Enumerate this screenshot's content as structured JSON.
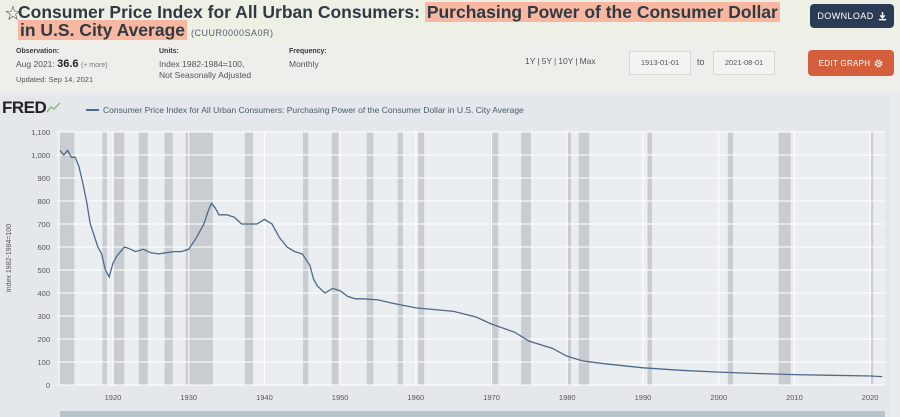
{
  "header": {
    "title_part1": "Consumer Price Index for All Urban Consumers: ",
    "title_part2": "Purchasing Power of the Consumer Dollar",
    "title_part3": "in U.S. City Average",
    "series_id": "(CUUR0000SA0R)",
    "download_label": "DOWNLOAD",
    "icons": {
      "star": "star-icon",
      "download": "download-icon"
    }
  },
  "meta": {
    "observation_label": "Observation:",
    "observation_date": "Aug 2021:",
    "observation_value": "36.6",
    "observation_more": "(+ more)",
    "updated": "Updated: Sep 14, 2021",
    "units_label": "Units:",
    "units_line1": "Index 1982-1984=100,",
    "units_line2": "Not Seasonally Adjusted",
    "frequency_label": "Frequency:",
    "frequency_value": "Monthly",
    "range_links": [
      "1Y",
      "5Y",
      "10Y",
      "Max"
    ],
    "date_from": "1913-01-01",
    "date_to_label": "to",
    "date_to": "2021-08-01",
    "edit_graph_label": "EDIT GRAPH",
    "icons": {
      "edit": "gear-icon"
    }
  },
  "chart": {
    "logo": "FRED",
    "legend_label": "Consumer Price Index for All Urban Consumers: Purchasing Power of the Consumer Dollar in U.S. City Average"
  },
  "colors": {
    "line": "#4d6a8a",
    "recession": "#c9cdd1",
    "grid": "#ffffff",
    "plot_bg": "#ebeef1"
  },
  "chart_data": {
    "type": "line",
    "title": "Consumer Price Index for All Urban Consumers: Purchasing Power of the Consumer Dollar in U.S. City Average",
    "xlabel": "",
    "ylabel": "Index 1982-1984=100",
    "xlim": [
      1913,
      2021.7
    ],
    "ylim": [
      0,
      1100
    ],
    "yticks": [
      0,
      100,
      200,
      300,
      400,
      500,
      600,
      700,
      800,
      900,
      1000,
      1100
    ],
    "ytick_labels": [
      "0",
      "100",
      "200",
      "300",
      "400",
      "500",
      "600",
      "700",
      "800",
      "900",
      "1,000",
      "1,100"
    ],
    "xticks": [
      1920,
      1930,
      1940,
      1950,
      1960,
      1970,
      1980,
      1990,
      2000,
      2010,
      2020
    ],
    "series": [
      {
        "name": "CUUR0000SA0R",
        "x": [
          1913,
          1913.5,
          1914,
          1914.5,
          1915,
          1915.5,
          1916,
          1916.5,
          1917,
          1917.5,
          1918,
          1918.5,
          1919,
          1919.5,
          1920,
          1920.5,
          1921,
          1921.5,
          1922,
          1923,
          1924,
          1925,
          1926,
          1927,
          1928,
          1929,
          1930,
          1931,
          1932,
          1932.5,
          1933,
          1933.5,
          1934,
          1935,
          1936,
          1937,
          1938,
          1939,
          1940,
          1941,
          1942,
          1943,
          1944,
          1945,
          1946,
          1946.5,
          1947,
          1948,
          1949,
          1950,
          1951,
          1952,
          1953,
          1955,
          1957,
          1960,
          1965,
          1968,
          1970,
          1973,
          1975,
          1978,
          1980,
          1982,
          1985,
          1990,
          1995,
          2000,
          2005,
          2010,
          2015,
          2020,
          2021.6
        ],
        "values": [
          1020,
          1000,
          1020,
          990,
          990,
          950,
          880,
          800,
          700,
          650,
          600,
          570,
          500,
          470,
          530,
          560,
          580,
          600,
          595,
          580,
          590,
          575,
          570,
          575,
          580,
          580,
          590,
          640,
          700,
          750,
          790,
          770,
          740,
          740,
          730,
          700,
          700,
          700,
          720,
          700,
          640,
          600,
          580,
          570,
          520,
          460,
          430,
          400,
          420,
          410,
          385,
          375,
          375,
          370,
          355,
          335,
          320,
          295,
          265,
          230,
          190,
          160,
          125,
          105,
          92,
          75,
          64,
          56,
          50,
          45,
          42,
          39,
          36.6
        ]
      }
    ],
    "recessions": [
      [
        1913,
        1914.9
      ],
      [
        1918.6,
        1919.2
      ],
      [
        1920.1,
        1921.5
      ],
      [
        1923.4,
        1924.6
      ],
      [
        1926.8,
        1927.9
      ],
      [
        1929.6,
        1933.2
      ],
      [
        1937.4,
        1938.5
      ],
      [
        1945.1,
        1945.8
      ],
      [
        1948.9,
        1949.8
      ],
      [
        1953.5,
        1954.4
      ],
      [
        1957.6,
        1958.3
      ],
      [
        1960.3,
        1961.1
      ],
      [
        1969.9,
        1970.9
      ],
      [
        1973.9,
        1975.2
      ],
      [
        1980.0,
        1980.5
      ],
      [
        1981.5,
        1982.9
      ],
      [
        1990.6,
        1991.2
      ],
      [
        2001.2,
        2001.9
      ],
      [
        2007.9,
        2009.5
      ],
      [
        2020.1,
        2020.4
      ]
    ]
  }
}
